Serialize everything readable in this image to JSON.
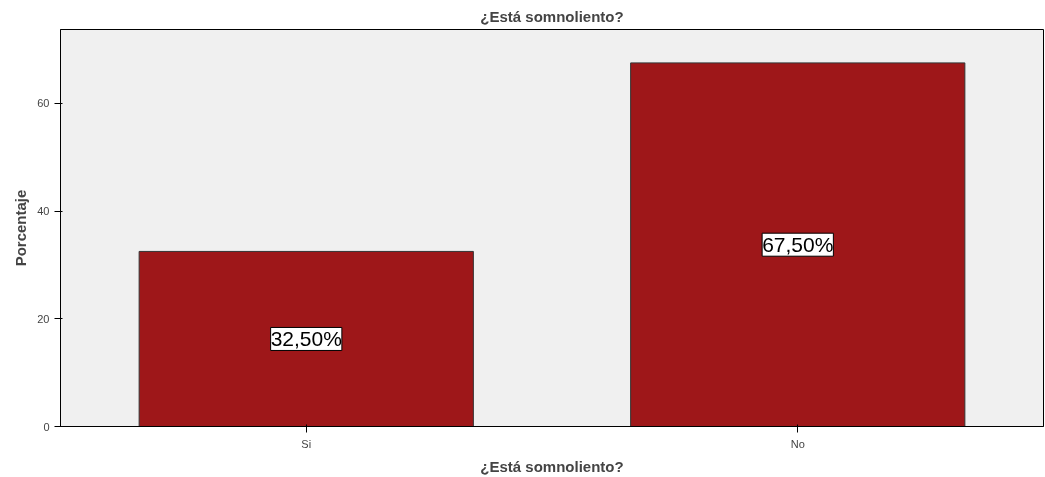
{
  "chart_data": {
    "type": "bar",
    "title": "¿Está somnoliento?",
    "xlabel": "¿Está somnoliento?",
    "ylabel": "Porcentaje",
    "categories": [
      "Si",
      "No"
    ],
    "values": [
      32.5,
      67.5
    ],
    "value_labels": [
      "32,50%",
      "67,50%"
    ],
    "color": "#9e1719",
    "ylim": [
      0,
      73.7
    ],
    "yticks": [
      0,
      20,
      40,
      60
    ]
  }
}
